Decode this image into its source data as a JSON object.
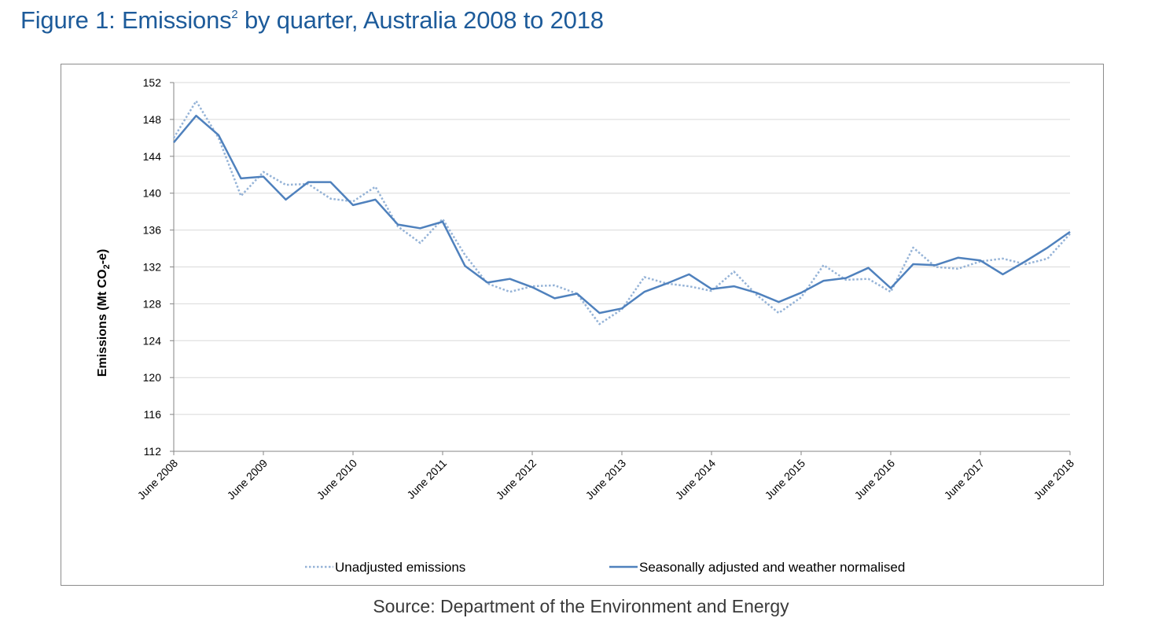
{
  "title": {
    "prefix": "Figure 1: Emissions",
    "superscript": "2",
    "suffix": " by quarter, Australia 2008 to 2018"
  },
  "source": "Source: Department of the Environment and Energy",
  "colors": {
    "title": "#1d5b9a",
    "series_solid": "#4f81bd",
    "series_dotted": "#95b3d7",
    "grid": "#d9d9d9"
  },
  "chart_data": {
    "type": "line",
    "ylabel": "Emissions (Mt CO2-e)",
    "ylabel_parts": {
      "pre": "Emissions (Mt CO",
      "sub": "2",
      "post": "-e)"
    },
    "ylim": [
      112,
      152
    ],
    "yticks": [
      112,
      116,
      120,
      124,
      128,
      132,
      136,
      140,
      144,
      148,
      152
    ],
    "grid": "horizontal",
    "legend_position": "bottom",
    "xlabels": [
      "June 2008",
      "June 2009",
      "June 2010",
      "June 2011",
      "June 2012",
      "June 2013",
      "June 2014",
      "June 2015",
      "June 2016",
      "June 2017",
      "June 2018"
    ],
    "quarters_per_label": 4,
    "series": [
      {
        "name": "Unadjusted emissions",
        "style": "dotted",
        "values": [
          146.0,
          150.0,
          146.0,
          139.7,
          142.3,
          140.9,
          141.0,
          139.4,
          139.1,
          140.7,
          136.4,
          134.6,
          137.2,
          133.3,
          130.2,
          129.3,
          129.9,
          130.0,
          129.1,
          125.8,
          127.4,
          130.9,
          130.2,
          129.9,
          129.4,
          131.5,
          129.0,
          127.0,
          128.7,
          132.2,
          130.6,
          130.7,
          129.3,
          134.1,
          132.0,
          131.8,
          132.6,
          132.9,
          132.3,
          132.9,
          135.6
        ]
      },
      {
        "name": "Seasonally adjusted and weather normalised",
        "style": "solid",
        "values": [
          145.5,
          148.4,
          146.3,
          141.6,
          141.8,
          139.3,
          141.2,
          141.2,
          138.7,
          139.3,
          136.6,
          136.2,
          136.9,
          132.1,
          130.3,
          130.7,
          129.8,
          128.6,
          129.1,
          127.0,
          127.5,
          129.3,
          130.2,
          131.2,
          129.6,
          129.9,
          129.2,
          128.2,
          129.2,
          130.5,
          130.8,
          131.9,
          129.7,
          132.3,
          132.2,
          133.0,
          132.7,
          131.2,
          132.6,
          134.1,
          135.8
        ]
      }
    ]
  }
}
